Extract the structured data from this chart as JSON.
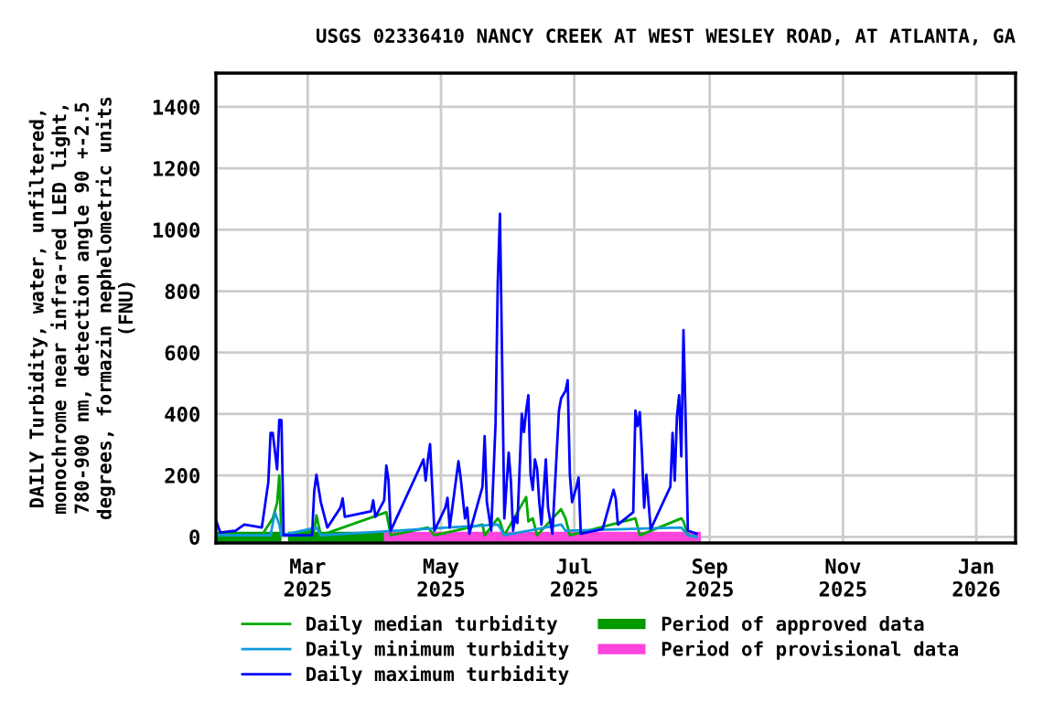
{
  "chart_data": {
    "type": "line",
    "title": "USGS 02336410 NANCY CREEK AT WEST WESLEY ROAD, AT ATLANTA, GA",
    "ylabel": "DAILY Turbidity, water, unfiltered,\nmonochrome near infra-red LED light,\n780-900 nm, detection angle 90 +-2.5\ndegrees, formazin nephelometric units\n(FNU)",
    "xlim": [
      "2025-01-18",
      "2026-01-19"
    ],
    "ylim": [
      -20,
      1510
    ],
    "xticks": [
      {
        "value": "2025-03-01",
        "label": "Mar\n2025"
      },
      {
        "value": "2025-05-01",
        "label": "May\n2025"
      },
      {
        "value": "2025-07-01",
        "label": "Jul\n2025"
      },
      {
        "value": "2025-09-01",
        "label": "Sep\n2025"
      },
      {
        "value": "2025-11-01",
        "label": "Nov\n2025"
      },
      {
        "value": "2026-01-01",
        "label": "Jan\n2026"
      }
    ],
    "yticks": [
      0,
      200,
      400,
      600,
      800,
      1000,
      1200,
      1400
    ],
    "grid": true,
    "legend": "bottom",
    "marker": "none",
    "line_style": "solid",
    "series": [
      {
        "name": "Period of approved data",
        "color": "#009900",
        "x": [
          "2025-01-18",
          "2025-02-17",
          "2025-02-18",
          "2025-02-20",
          "2025-04-05"
        ],
        "values": [
          0,
          0,
          null,
          0,
          0
        ]
      },
      {
        "name": "Period of provisional data",
        "color": "#ff44dd",
        "x": [
          "2025-04-05",
          "2025-08-28"
        ],
        "values": [
          0,
          0
        ]
      },
      {
        "name": "Daily median turbidity",
        "color": "#00aa00",
        "x": [
          "2025-01-18",
          "2025-02-08",
          "2025-02-13",
          "2025-02-15",
          "2025-02-16",
          "2025-02-17",
          "2025-03-04",
          "2025-03-05",
          "2025-03-07",
          "2025-04-06",
          "2025-04-08",
          "2025-04-25",
          "2025-04-28",
          "2025-05-20",
          "2025-05-21",
          "2025-05-27",
          "2025-05-28",
          "2025-05-30",
          "2025-06-09",
          "2025-06-10",
          "2025-06-12",
          "2025-06-14",
          "2025-06-25",
          "2025-06-27",
          "2025-06-29",
          "2025-07-29",
          "2025-07-31",
          "2025-08-19",
          "2025-08-20",
          "2025-08-22",
          "2025-08-26"
        ],
        "values": [
          10,
          5,
          60,
          110,
          200,
          5,
          20,
          70,
          5,
          80,
          5,
          30,
          5,
          40,
          5,
          60,
          50,
          5,
          130,
          50,
          60,
          5,
          90,
          60,
          5,
          60,
          5,
          60,
          50,
          5,
          0
        ]
      },
      {
        "name": "Daily minimum turbidity",
        "color": "#1199dd",
        "x": [
          "2025-01-18",
          "2025-02-12",
          "2025-02-14",
          "2025-02-16",
          "2025-02-17",
          "2025-03-05",
          "2025-03-07",
          "2025-05-27",
          "2025-05-28",
          "2025-05-30",
          "2025-06-25",
          "2025-06-27",
          "2025-08-19",
          "2025-08-22",
          "2025-08-26"
        ],
        "values": [
          5,
          5,
          80,
          40,
          5,
          30,
          5,
          40,
          30,
          5,
          40,
          20,
          30,
          5,
          0
        ]
      },
      {
        "name": "Daily maximum turbidity",
        "color": "#0000ff",
        "x": [
          "2025-01-18",
          "2025-01-20",
          "2025-01-27",
          "2025-01-31",
          "2025-02-08",
          "2025-02-11",
          "2025-02-12",
          "2025-02-13",
          "2025-02-15",
          "2025-02-16",
          "2025-02-17",
          "2025-02-18",
          "2025-03-03",
          "2025-03-04",
          "2025-03-05",
          "2025-03-07",
          "2025-03-10",
          "2025-03-16",
          "2025-03-17",
          "2025-03-18",
          "2025-03-30",
          "2025-03-31",
          "2025-04-01",
          "2025-04-05",
          "2025-04-06",
          "2025-04-07",
          "2025-04-08",
          "2025-04-23",
          "2025-04-24",
          "2025-04-25",
          "2025-04-26",
          "2025-04-28",
          "2025-05-03",
          "2025-05-04",
          "2025-05-05",
          "2025-05-09",
          "2025-05-10",
          "2025-05-12",
          "2025-05-13",
          "2025-05-14",
          "2025-05-20",
          "2025-05-21",
          "2025-05-22",
          "2025-05-24",
          "2025-05-26",
          "2025-05-27",
          "2025-05-28",
          "2025-05-29",
          "2025-05-30",
          "2025-06-01",
          "2025-06-02",
          "2025-06-03",
          "2025-06-04",
          "2025-06-05",
          "2025-06-07",
          "2025-06-08",
          "2025-06-09",
          "2025-06-10",
          "2025-06-11",
          "2025-06-12",
          "2025-06-13",
          "2025-06-14",
          "2025-06-15",
          "2025-06-16",
          "2025-06-18",
          "2025-06-19",
          "2025-06-21",
          "2025-06-24",
          "2025-06-25",
          "2025-06-27",
          "2025-06-28",
          "2025-06-29",
          "2025-06-30",
          "2025-07-02",
          "2025-07-03",
          "2025-07-04",
          "2025-07-14",
          "2025-07-19",
          "2025-07-20",
          "2025-07-21",
          "2025-07-28",
          "2025-07-29",
          "2025-07-30",
          "2025-07-31",
          "2025-08-01",
          "2025-08-02",
          "2025-08-03",
          "2025-08-04",
          "2025-08-05",
          "2025-08-14",
          "2025-08-15",
          "2025-08-16",
          "2025-08-17",
          "2025-08-18",
          "2025-08-19",
          "2025-08-20",
          "2025-08-21",
          "2025-08-22",
          "2025-08-26"
        ],
        "values": [
          54,
          14,
          20,
          40,
          30,
          179,
          338,
          338,
          220,
          381,
          380,
          5,
          5,
          149,
          202,
          113,
          30,
          95,
          125,
          65,
          83,
          119,
          65,
          119,
          232,
          183,
          20,
          252,
          183,
          252,
          302,
          20,
          95,
          127,
          30,
          246,
          193,
          60,
          95,
          10,
          163,
          328,
          113,
          20,
          371,
          828,
          1052,
          572,
          60,
          274,
          183,
          20,
          65,
          45,
          401,
          341,
          411,
          461,
          202,
          153,
          252,
          222,
          113,
          40,
          252,
          95,
          10,
          411,
          451,
          475,
          510,
          202,
          113,
          163,
          193,
          10,
          25,
          153,
          125,
          40,
          80,
          411,
          361,
          406,
          272,
          95,
          202,
          113,
          25,
          163,
          338,
          183,
          391,
          461,
          262,
          673,
          381,
          20,
          10
        ]
      }
    ]
  }
}
